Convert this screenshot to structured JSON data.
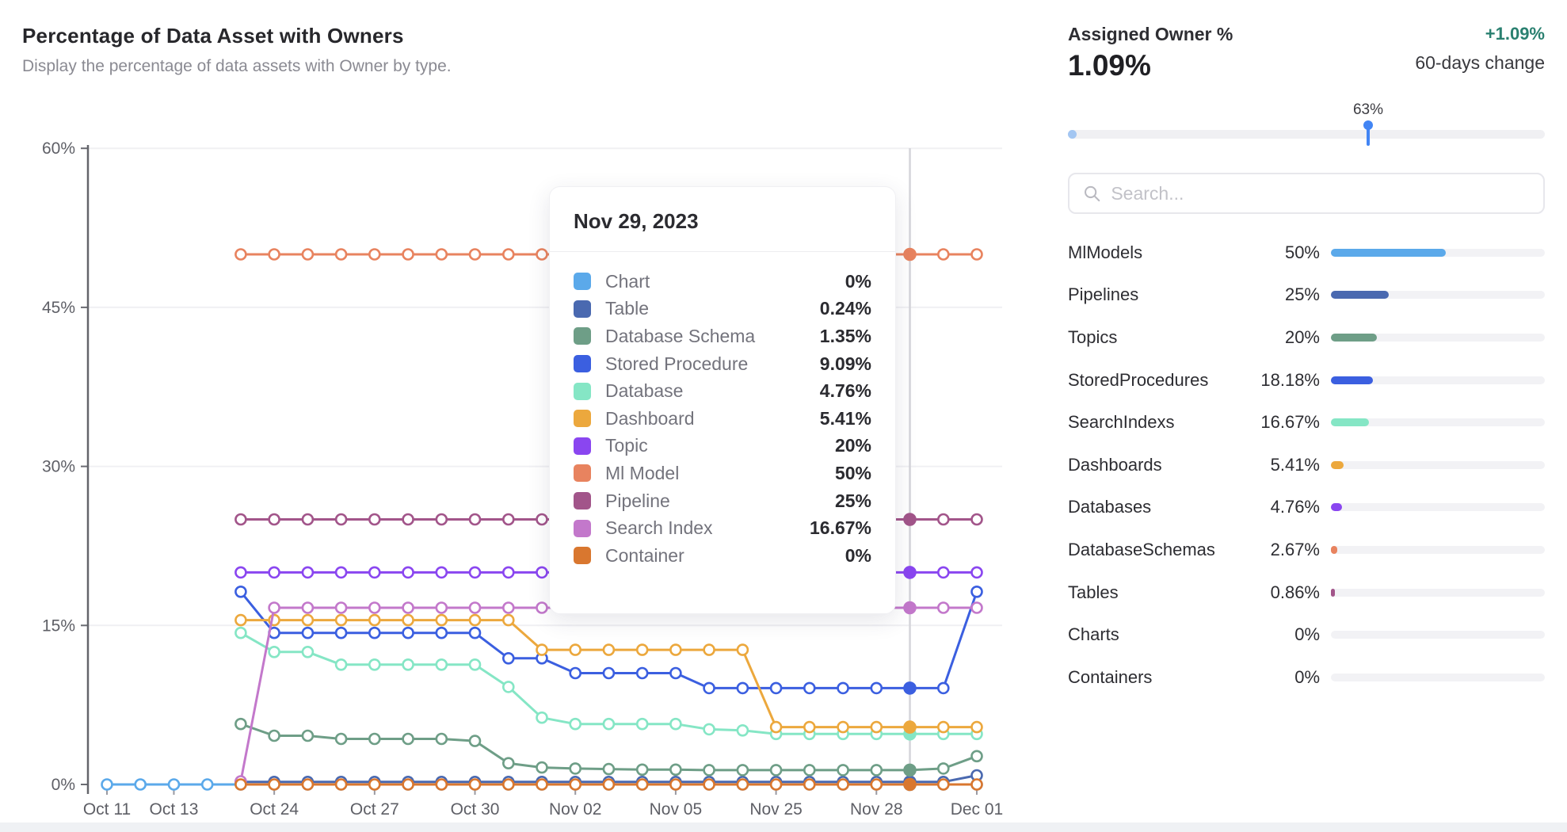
{
  "header": {
    "title": "Percentage of Data Asset with Owners",
    "subtitle": "Display the percentage of data assets with Owner by type."
  },
  "chart_data": {
    "type": "line",
    "title": "Percentage of Data Asset with Owners",
    "ylabel": "",
    "xlabel": "",
    "ylim": [
      0,
      60
    ],
    "grid": true,
    "y_ticks": [
      0,
      15,
      30,
      45,
      60
    ],
    "y_tick_labels": [
      "0%",
      "15%",
      "30%",
      "45%",
      "60%"
    ],
    "num_points": 27,
    "x_tick_indices": [
      0,
      2,
      5,
      8,
      11,
      14,
      17,
      20,
      23,
      26
    ],
    "x_tick_labels": [
      "Oct 11",
      "Oct 13",
      "Oct 24",
      "Oct 27",
      "Oct 30",
      "Nov 02",
      "Nov 05",
      "Nov 25",
      "Nov 28",
      "Dec 01"
    ],
    "highlight_index": 24,
    "highlight_date": "Nov 29, 2023",
    "series": [
      {
        "name": "Chart",
        "color": "#5BA9EA",
        "values": [
          0,
          0,
          0,
          0,
          0,
          0,
          0,
          0,
          0,
          0,
          0,
          0,
          0,
          0,
          0,
          0,
          0,
          0,
          0,
          0,
          0,
          0,
          0,
          0,
          0,
          0,
          0
        ]
      },
      {
        "name": "Table",
        "color": "#4A69B0",
        "values": [
          null,
          null,
          null,
          null,
          0.24,
          0.24,
          0.24,
          0.24,
          0.24,
          0.24,
          0.24,
          0.24,
          0.24,
          0.24,
          0.24,
          0.24,
          0.24,
          0.24,
          0.24,
          0.24,
          0.24,
          0.24,
          0.24,
          0.24,
          0.24,
          0.24,
          0.86
        ]
      },
      {
        "name": "Database Schema",
        "color": "#6E9E87",
        "values": [
          null,
          null,
          null,
          null,
          5.7,
          4.6,
          4.6,
          4.3,
          4.3,
          4.3,
          4.3,
          4.1,
          2.0,
          1.6,
          1.5,
          1.45,
          1.4,
          1.4,
          1.35,
          1.35,
          1.35,
          1.35,
          1.35,
          1.35,
          1.35,
          1.5,
          2.67
        ]
      },
      {
        "name": "Stored Procedure",
        "color": "#3B5FE0",
        "values": [
          null,
          null,
          null,
          null,
          18.18,
          14.3,
          14.3,
          14.3,
          14.3,
          14.3,
          14.3,
          14.3,
          11.9,
          11.9,
          10.5,
          10.5,
          10.5,
          10.5,
          9.09,
          9.09,
          9.09,
          9.09,
          9.09,
          9.09,
          9.09,
          9.09,
          18.18
        ]
      },
      {
        "name": "Database",
        "color": "#85E6C5",
        "values": [
          null,
          null,
          null,
          null,
          14.3,
          12.5,
          12.5,
          11.3,
          11.3,
          11.3,
          11.3,
          11.3,
          9.2,
          6.3,
          5.7,
          5.7,
          5.7,
          5.7,
          5.2,
          5.1,
          4.76,
          4.76,
          4.76,
          4.76,
          4.76,
          4.76,
          4.76
        ]
      },
      {
        "name": "Dashboard",
        "color": "#ECA83D",
        "values": [
          null,
          null,
          null,
          null,
          15.5,
          15.5,
          15.5,
          15.5,
          15.5,
          15.5,
          15.5,
          15.5,
          15.5,
          12.7,
          12.7,
          12.7,
          12.7,
          12.7,
          12.7,
          12.7,
          5.41,
          5.41,
          5.41,
          5.41,
          5.41,
          5.41,
          5.41
        ]
      },
      {
        "name": "Topic",
        "color": "#8A46F0",
        "values": [
          null,
          null,
          null,
          null,
          20,
          20,
          20,
          20,
          20,
          20,
          20,
          20,
          20,
          20,
          20,
          20,
          20,
          20,
          20,
          20,
          20,
          20,
          20,
          20,
          20,
          20,
          20
        ]
      },
      {
        "name": "Ml Model",
        "color": "#E8835F",
        "values": [
          null,
          null,
          null,
          null,
          50,
          50,
          50,
          50,
          50,
          50,
          50,
          50,
          50,
          50,
          50,
          50,
          50,
          50,
          50,
          50,
          50,
          50,
          50,
          50,
          50,
          50,
          50
        ]
      },
      {
        "name": "Pipeline",
        "color": "#A2558A",
        "values": [
          null,
          null,
          null,
          null,
          25,
          25,
          25,
          25,
          25,
          25,
          25,
          25,
          25,
          25,
          25,
          25,
          25,
          25,
          25,
          25,
          25,
          25,
          25,
          25,
          25,
          25,
          25
        ]
      },
      {
        "name": "Search Index",
        "color": "#C378CB",
        "values": [
          null,
          null,
          null,
          null,
          0.3,
          16.67,
          16.67,
          16.67,
          16.67,
          16.67,
          16.67,
          16.67,
          16.67,
          16.67,
          16.67,
          16.67,
          16.67,
          16.67,
          16.67,
          16.67,
          16.67,
          16.67,
          16.67,
          16.67,
          16.67,
          16.67,
          16.67
        ]
      },
      {
        "name": "Container",
        "color": "#D9772F",
        "values": [
          null,
          null,
          null,
          null,
          0,
          0,
          0,
          0,
          0,
          0,
          0,
          0,
          0,
          0,
          0,
          0,
          0,
          0,
          0,
          0,
          0,
          0,
          0,
          0,
          0,
          0,
          0
        ]
      }
    ]
  },
  "tooltip": {
    "date": "Nov 29, 2023",
    "rows": [
      {
        "label": "Chart",
        "value": "0%",
        "color": "#5BA9EA"
      },
      {
        "label": "Table",
        "value": "0.24%",
        "color": "#4A69B0"
      },
      {
        "label": "Database Schema",
        "value": "1.35%",
        "color": "#6E9E87"
      },
      {
        "label": "Stored Procedure",
        "value": "9.09%",
        "color": "#3B5FE0"
      },
      {
        "label": "Database",
        "value": "4.76%",
        "color": "#85E6C5"
      },
      {
        "label": "Dashboard",
        "value": "5.41%",
        "color": "#ECA83D"
      },
      {
        "label": "Topic",
        "value": "20%",
        "color": "#8A46F0"
      },
      {
        "label": "Ml Model",
        "value": "50%",
        "color": "#E8835F"
      },
      {
        "label": "Pipeline",
        "value": "25%",
        "color": "#A2558A"
      },
      {
        "label": "Search Index",
        "value": "16.67%",
        "color": "#C378CB"
      },
      {
        "label": "Container",
        "value": "0%",
        "color": "#D9772F"
      }
    ]
  },
  "panel": {
    "title": "Assigned Owner %",
    "big_value": "1.09%",
    "change_value": "+1.09%",
    "change_color": "#2A8070",
    "change_label": "60-days change",
    "slider": {
      "label": "63%",
      "percent": 63
    },
    "search_placeholder": "Search...",
    "rows": [
      {
        "label": "MlModels",
        "value": "50%",
        "pct": 50,
        "color": "#5BA9EA"
      },
      {
        "label": "Pipelines",
        "value": "25%",
        "pct": 25,
        "color": "#4A69B0"
      },
      {
        "label": "Topics",
        "value": "20%",
        "pct": 20,
        "color": "#6E9E87"
      },
      {
        "label": "StoredProcedures",
        "value": "18.18%",
        "pct": 18.18,
        "color": "#3B5FE0"
      },
      {
        "label": "SearchIndexs",
        "value": "16.67%",
        "pct": 16.67,
        "color": "#85E6C5"
      },
      {
        "label": "Dashboards",
        "value": "5.41%",
        "pct": 5.41,
        "color": "#ECA83D"
      },
      {
        "label": "Databases",
        "value": "4.76%",
        "pct": 4.76,
        "color": "#8A46F0"
      },
      {
        "label": "DatabaseSchemas",
        "value": "2.67%",
        "pct": 2.67,
        "color": "#E8835F"
      },
      {
        "label": "Tables",
        "value": "0.86%",
        "pct": 0.86,
        "color": "#A2558A"
      },
      {
        "label": "Charts",
        "value": "0%",
        "pct": 0,
        "color": "#C378CB"
      },
      {
        "label": "Containers",
        "value": "0%",
        "pct": 0,
        "color": "#D9772F"
      }
    ]
  }
}
